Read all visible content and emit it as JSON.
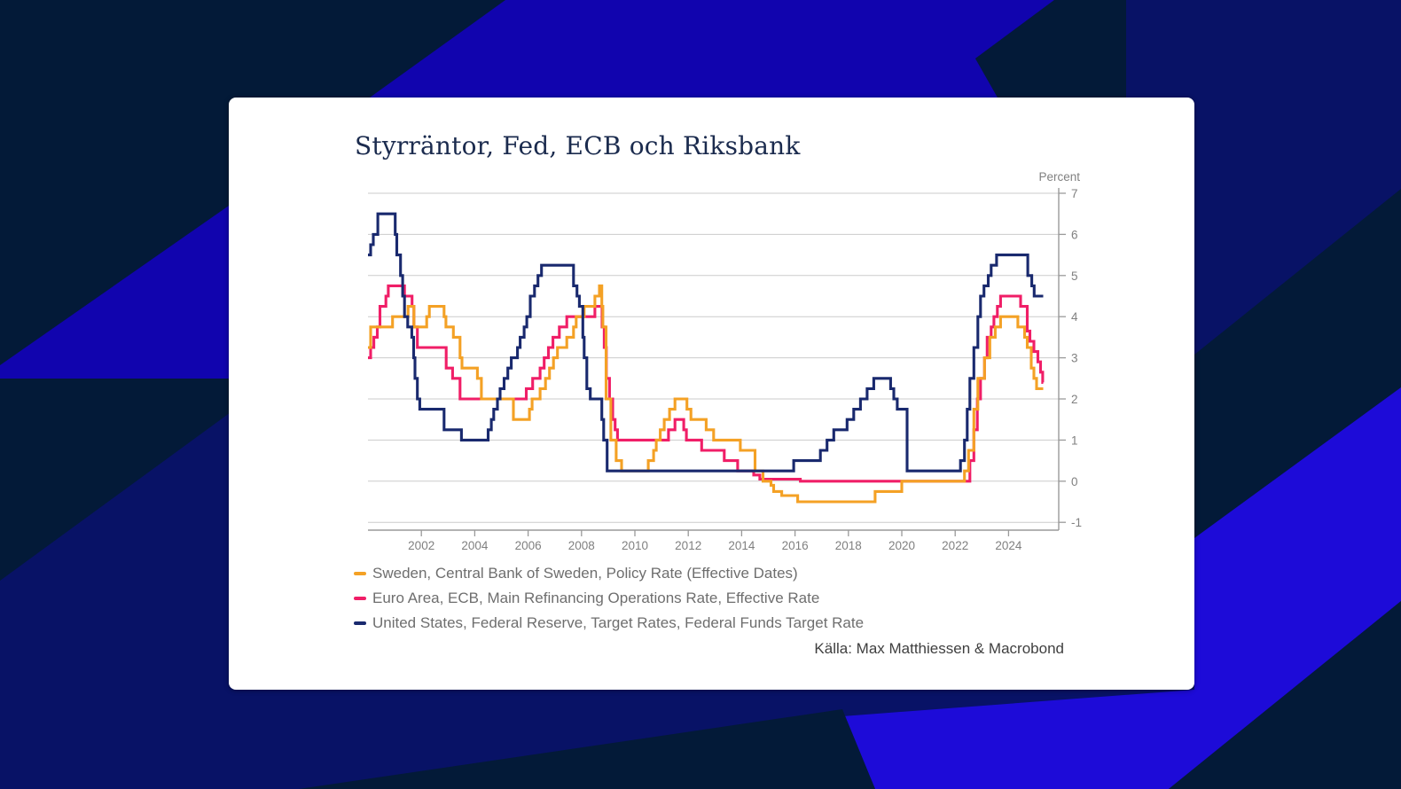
{
  "colors": {
    "bg_navy": "#031A38",
    "bg_royal": "#081266",
    "bg_bright": "#1104AE",
    "bg_bright2": "#1D0BD8",
    "card_bg": "#FFFFFF",
    "title_text": "#1B2B4E",
    "grid": "#CBCBCB",
    "axis": "#9A9A9A",
    "tick_text": "#808080",
    "legend_text": "#6E6E6E",
    "source_text": "#3F3F3F"
  },
  "card": {
    "title": "Styrräntor, Fed, ECB och Riksbank"
  },
  "source": {
    "label": "Källa: Max Matthiessen & Macrobond"
  },
  "chart_data": {
    "type": "line",
    "step": true,
    "title": "Styrräntor, Fed, ECB och Riksbank",
    "unit_label": "Percent",
    "grid": "horizontal",
    "legend_position": "bottom-left",
    "x_domain": [
      2000,
      2025.88
    ],
    "y_domain": [
      -1,
      7
    ],
    "x_end": 2025.3,
    "x_ticks": [
      2002,
      2004,
      2006,
      2008,
      2010,
      2012,
      2014,
      2016,
      2018,
      2020,
      2022,
      2024
    ],
    "y_ticks": [
      7,
      6,
      5,
      4,
      3,
      2,
      1,
      0,
      -1
    ],
    "series": [
      {
        "name": "Euro Area, ECB, Main Refinancing Operations Rate, Effective Rate",
        "color": "#F01E67",
        "points": [
          [
            2000.0,
            3.0
          ],
          [
            2000.1,
            3.25
          ],
          [
            2000.22,
            3.5
          ],
          [
            2000.35,
            3.75
          ],
          [
            2000.45,
            4.25
          ],
          [
            2000.67,
            4.5
          ],
          [
            2000.76,
            4.75
          ],
          [
            2001.37,
            4.5
          ],
          [
            2001.65,
            4.25
          ],
          [
            2001.72,
            3.75
          ],
          [
            2001.85,
            3.25
          ],
          [
            2002.93,
            2.75
          ],
          [
            2003.17,
            2.5
          ],
          [
            2003.45,
            2.0
          ],
          [
            2005.93,
            2.25
          ],
          [
            2006.17,
            2.5
          ],
          [
            2006.45,
            2.75
          ],
          [
            2006.6,
            3.0
          ],
          [
            2006.76,
            3.25
          ],
          [
            2006.93,
            3.5
          ],
          [
            2007.17,
            3.75
          ],
          [
            2007.45,
            4.0
          ],
          [
            2008.5,
            4.25
          ],
          [
            2008.77,
            3.75
          ],
          [
            2008.85,
            3.25
          ],
          [
            2008.93,
            2.5
          ],
          [
            2009.05,
            2.0
          ],
          [
            2009.17,
            1.5
          ],
          [
            2009.26,
            1.25
          ],
          [
            2009.35,
            1.0
          ],
          [
            2011.26,
            1.25
          ],
          [
            2011.5,
            1.5
          ],
          [
            2011.83,
            1.25
          ],
          [
            2011.93,
            1.0
          ],
          [
            2012.5,
            0.75
          ],
          [
            2013.35,
            0.5
          ],
          [
            2013.85,
            0.25
          ],
          [
            2014.45,
            0.15
          ],
          [
            2014.68,
            0.05
          ],
          [
            2016.2,
            0.0
          ],
          [
            2022.55,
            0.5
          ],
          [
            2022.7,
            1.25
          ],
          [
            2022.83,
            2.0
          ],
          [
            2022.95,
            2.5
          ],
          [
            2023.1,
            3.0
          ],
          [
            2023.2,
            3.5
          ],
          [
            2023.35,
            3.75
          ],
          [
            2023.45,
            4.0
          ],
          [
            2023.58,
            4.25
          ],
          [
            2023.7,
            4.5
          ],
          [
            2024.45,
            4.25
          ],
          [
            2024.7,
            3.65
          ],
          [
            2024.8,
            3.4
          ],
          [
            2024.95,
            3.15
          ],
          [
            2025.1,
            2.9
          ],
          [
            2025.2,
            2.65
          ],
          [
            2025.28,
            2.4
          ]
        ]
      },
      {
        "name": "Sweden, Central Bank of Sweden, Policy Rate (Effective Dates)",
        "color": "#F4A125",
        "points": [
          [
            2000.0,
            3.25
          ],
          [
            2000.1,
            3.75
          ],
          [
            2000.92,
            4.0
          ],
          [
            2001.5,
            4.25
          ],
          [
            2001.72,
            3.75
          ],
          [
            2002.2,
            4.0
          ],
          [
            2002.3,
            4.25
          ],
          [
            2002.85,
            4.0
          ],
          [
            2002.92,
            3.75
          ],
          [
            2003.2,
            3.5
          ],
          [
            2003.45,
            3.0
          ],
          [
            2003.52,
            2.75
          ],
          [
            2004.1,
            2.5
          ],
          [
            2004.25,
            2.0
          ],
          [
            2005.45,
            1.5
          ],
          [
            2006.05,
            1.75
          ],
          [
            2006.15,
            2.0
          ],
          [
            2006.45,
            2.25
          ],
          [
            2006.65,
            2.5
          ],
          [
            2006.8,
            2.75
          ],
          [
            2006.95,
            3.0
          ],
          [
            2007.1,
            3.25
          ],
          [
            2007.45,
            3.5
          ],
          [
            2007.7,
            3.75
          ],
          [
            2007.8,
            4.0
          ],
          [
            2008.1,
            4.25
          ],
          [
            2008.5,
            4.5
          ],
          [
            2008.67,
            4.75
          ],
          [
            2008.76,
            4.25
          ],
          [
            2008.8,
            3.75
          ],
          [
            2008.92,
            2.0
          ],
          [
            2009.1,
            1.0
          ],
          [
            2009.3,
            0.5
          ],
          [
            2009.5,
            0.25
          ],
          [
            2010.5,
            0.5
          ],
          [
            2010.7,
            0.75
          ],
          [
            2010.8,
            1.0
          ],
          [
            2010.95,
            1.25
          ],
          [
            2011.1,
            1.5
          ],
          [
            2011.3,
            1.75
          ],
          [
            2011.5,
            2.0
          ],
          [
            2011.95,
            1.75
          ],
          [
            2012.1,
            1.5
          ],
          [
            2012.67,
            1.25
          ],
          [
            2012.95,
            1.0
          ],
          [
            2013.95,
            0.75
          ],
          [
            2014.5,
            0.25
          ],
          [
            2014.8,
            0.0
          ],
          [
            2015.1,
            -0.1
          ],
          [
            2015.2,
            -0.25
          ],
          [
            2015.5,
            -0.35
          ],
          [
            2016.1,
            -0.5
          ],
          [
            2019.0,
            -0.25
          ],
          [
            2020.0,
            0.0
          ],
          [
            2022.35,
            0.25
          ],
          [
            2022.5,
            0.75
          ],
          [
            2022.7,
            1.75
          ],
          [
            2022.85,
            2.5
          ],
          [
            2023.1,
            3.0
          ],
          [
            2023.3,
            3.5
          ],
          [
            2023.5,
            3.75
          ],
          [
            2023.7,
            4.0
          ],
          [
            2024.35,
            3.75
          ],
          [
            2024.6,
            3.5
          ],
          [
            2024.7,
            3.25
          ],
          [
            2024.85,
            2.75
          ],
          [
            2024.95,
            2.5
          ],
          [
            2025.05,
            2.25
          ]
        ]
      },
      {
        "name": "United States, Federal Reserve, Target Rates, Federal Funds Target Rate",
        "color": "#19296E",
        "points": [
          [
            2000.0,
            5.5
          ],
          [
            2000.1,
            5.75
          ],
          [
            2000.2,
            6.0
          ],
          [
            2000.37,
            6.5
          ],
          [
            2001.02,
            6.0
          ],
          [
            2001.08,
            5.5
          ],
          [
            2001.22,
            5.0
          ],
          [
            2001.3,
            4.5
          ],
          [
            2001.37,
            4.0
          ],
          [
            2001.49,
            3.75
          ],
          [
            2001.64,
            3.5
          ],
          [
            2001.71,
            3.0
          ],
          [
            2001.76,
            2.5
          ],
          [
            2001.85,
            2.0
          ],
          [
            2001.94,
            1.75
          ],
          [
            2002.85,
            1.25
          ],
          [
            2003.5,
            1.0
          ],
          [
            2004.5,
            1.25
          ],
          [
            2004.62,
            1.5
          ],
          [
            2004.71,
            1.75
          ],
          [
            2004.85,
            2.0
          ],
          [
            2004.95,
            2.25
          ],
          [
            2005.1,
            2.5
          ],
          [
            2005.24,
            2.75
          ],
          [
            2005.37,
            3.0
          ],
          [
            2005.6,
            3.25
          ],
          [
            2005.7,
            3.5
          ],
          [
            2005.85,
            3.75
          ],
          [
            2005.95,
            4.0
          ],
          [
            2006.08,
            4.5
          ],
          [
            2006.24,
            4.75
          ],
          [
            2006.37,
            5.0
          ],
          [
            2006.5,
            5.25
          ],
          [
            2007.7,
            4.75
          ],
          [
            2007.83,
            4.5
          ],
          [
            2007.92,
            4.25
          ],
          [
            2008.05,
            3.5
          ],
          [
            2008.1,
            3.0
          ],
          [
            2008.2,
            2.25
          ],
          [
            2008.33,
            2.0
          ],
          [
            2008.76,
            1.5
          ],
          [
            2008.83,
            1.0
          ],
          [
            2008.96,
            0.25
          ],
          [
            2015.95,
            0.5
          ],
          [
            2016.95,
            0.75
          ],
          [
            2017.2,
            1.0
          ],
          [
            2017.45,
            1.25
          ],
          [
            2017.95,
            1.5
          ],
          [
            2018.2,
            1.75
          ],
          [
            2018.45,
            2.0
          ],
          [
            2018.7,
            2.25
          ],
          [
            2018.95,
            2.5
          ],
          [
            2019.58,
            2.25
          ],
          [
            2019.7,
            2.0
          ],
          [
            2019.83,
            1.75
          ],
          [
            2020.2,
            0.25
          ],
          [
            2022.2,
            0.5
          ],
          [
            2022.35,
            1.0
          ],
          [
            2022.45,
            1.75
          ],
          [
            2022.55,
            2.5
          ],
          [
            2022.7,
            3.25
          ],
          [
            2022.85,
            4.0
          ],
          [
            2022.95,
            4.5
          ],
          [
            2023.08,
            4.75
          ],
          [
            2023.24,
            5.0
          ],
          [
            2023.35,
            5.25
          ],
          [
            2023.55,
            5.5
          ],
          [
            2024.72,
            5.0
          ],
          [
            2024.87,
            4.75
          ],
          [
            2024.96,
            4.5
          ]
        ]
      }
    ]
  }
}
